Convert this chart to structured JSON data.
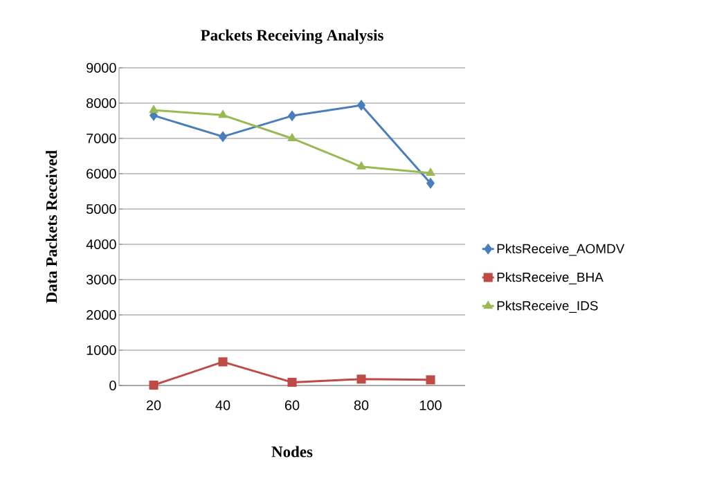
{
  "chart_data": {
    "type": "line",
    "title": "Packets Receiving Analysis",
    "xlabel": "Nodes",
    "ylabel": "Data Packets Received",
    "categories": [
      "20",
      "40",
      "60",
      "80",
      "100"
    ],
    "series": [
      {
        "name": "PktsReceive_AOMDV",
        "color": "#4a7ebb",
        "marker": "diamond",
        "values": [
          7650,
          7050,
          7640,
          7940,
          5730
        ]
      },
      {
        "name": "PktsReceive_BHA",
        "color": "#be4b48",
        "marker": "square",
        "values": [
          10,
          670,
          90,
          180,
          160
        ]
      },
      {
        "name": "PktsReceive_IDS",
        "color": "#98b954",
        "marker": "triangle",
        "values": [
          7800,
          7660,
          7000,
          6200,
          6020
        ]
      }
    ],
    "ylim": [
      0,
      9000
    ],
    "yticks": [
      0,
      1000,
      2000,
      3000,
      4000,
      5000,
      6000,
      7000,
      8000,
      9000
    ],
    "grid": "y",
    "legend": "right",
    "line_style": "solid"
  }
}
